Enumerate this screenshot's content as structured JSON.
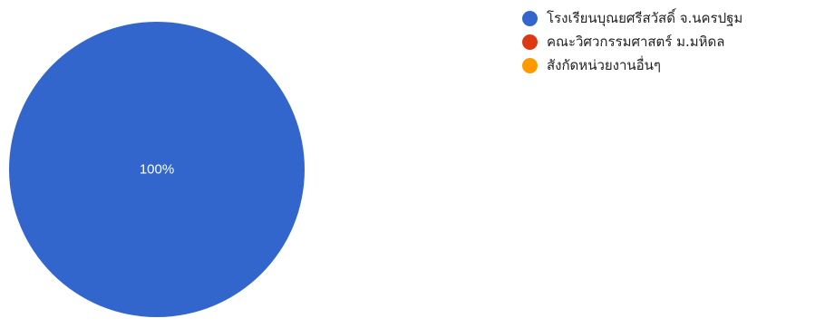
{
  "chart_data": {
    "type": "pie",
    "categories": [
      "โรงเรียนบุณยศรีสวัสดิ์ จ.นครปฐม",
      "คณะวิศวกรรมศาสตร์ ม.มหิดล",
      "สังกัดหน่วยงานอื่นๆ"
    ],
    "values": [
      100,
      0,
      0
    ],
    "slice_labels": [
      "100%",
      "",
      ""
    ],
    "colors": [
      "#3366cc",
      "#dc3912",
      "#ff9900"
    ],
    "legend_position": "right"
  }
}
